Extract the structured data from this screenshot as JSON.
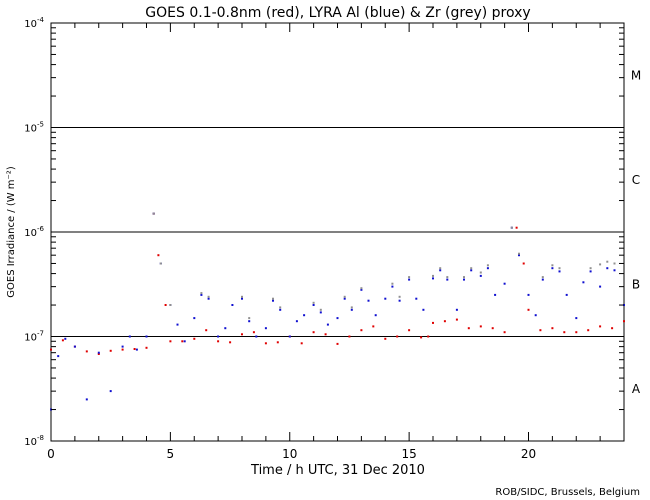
{
  "chart_data": {
    "type": "scatter",
    "title": "GOES 0.1-0.8nm (red), LYRA Al (blue) & Zr (grey) proxy",
    "xlabel": "Time / h UTC, 31 Dec 2010",
    "ylabel": "GOES Irradiance / (W m⁻²)",
    "credit": "ROB/SIDC, Brussels, Belgium",
    "x_scale": "linear",
    "y_scale": "log",
    "xlim": [
      0,
      24
    ],
    "ylim": [
      1e-08,
      0.0001
    ],
    "grid": false,
    "legend": "none",
    "x_ticks": [
      "0",
      "5",
      "10",
      "15",
      "20"
    ],
    "y_ticks": [
      {
        "value": 1e-08,
        "base": "10",
        "exp": "-8"
      },
      {
        "value": 1e-07,
        "base": "10",
        "exp": "-7"
      },
      {
        "value": 1e-06,
        "base": "10",
        "exp": "-6"
      },
      {
        "value": 1e-05,
        "base": "10",
        "exp": "-5"
      },
      {
        "value": 0.0001,
        "base": "10",
        "exp": "-4"
      }
    ],
    "threshold_lines": [
      1e-07,
      1e-06,
      1e-05
    ],
    "flare_classes": [
      {
        "label": "A",
        "value": 3.16e-08
      },
      {
        "label": "B",
        "value": 3.16e-07
      },
      {
        "label": "C",
        "value": 3.16e-06
      },
      {
        "label": "M",
        "value": 3.16e-05
      }
    ],
    "series": [
      {
        "color": "#e00000",
        "x": [
          0.0,
          0.5,
          1.0,
          1.5,
          2.0,
          2.5,
          3.0,
          3.5,
          4.0,
          4.3,
          4.5,
          4.8,
          5.0,
          5.5,
          6.0,
          6.5,
          7.0,
          7.5,
          8.0,
          8.5,
          9.0,
          9.5,
          10.0,
          10.5,
          11.0,
          11.5,
          12.0,
          12.5,
          13.0,
          13.5,
          14.0,
          14.5,
          15.0,
          15.5,
          15.8,
          16.0,
          16.5,
          17.0,
          17.5,
          18.0,
          18.5,
          19.0,
          19.5,
          19.8,
          20.0,
          20.5,
          21.0,
          21.5,
          22.0,
          22.5,
          23.0,
          23.5,
          24.0
        ],
        "y": [
          7.5e-08,
          9.2e-08,
          8e-08,
          7.2e-08,
          6.8e-08,
          7.3e-08,
          7.5e-08,
          7.6e-08,
          7.8e-08,
          1.5e-06,
          6e-07,
          2e-07,
          9e-08,
          9e-08,
          9.5e-08,
          1.15e-07,
          9e-08,
          8.8e-08,
          1.05e-07,
          1.1e-07,
          8.6e-08,
          8.8e-08,
          1e-07,
          8.6e-08,
          1.1e-07,
          1.05e-07,
          8.5e-08,
          1e-07,
          1.15e-07,
          1.25e-07,
          9.5e-08,
          1e-07,
          1.15e-07,
          9.8e-08,
          1e-07,
          1.35e-07,
          1.4e-07,
          1.45e-07,
          1.2e-07,
          1.25e-07,
          1.2e-07,
          1.1e-07,
          1.1e-06,
          5e-07,
          1.8e-07,
          1.15e-07,
          1.2e-07,
          1.1e-07,
          1.1e-07,
          1.15e-07,
          1.25e-07,
          1.2e-07,
          1.4e-07
        ]
      },
      {
        "color": "#1010d0",
        "x": [
          0.0,
          0.3,
          0.6,
          1.0,
          1.5,
          2.0,
          2.5,
          3.0,
          3.3,
          3.6,
          4.0,
          4.3,
          4.6,
          5.0,
          5.3,
          5.6,
          6.0,
          6.3,
          6.6,
          7.0,
          7.3,
          7.6,
          8.0,
          8.3,
          8.6,
          9.0,
          9.3,
          9.6,
          10.0,
          10.3,
          10.6,
          11.0,
          11.3,
          11.6,
          12.0,
          12.3,
          12.6,
          13.0,
          13.3,
          13.6,
          14.0,
          14.3,
          14.6,
          15.0,
          15.3,
          15.6,
          16.0,
          16.3,
          16.6,
          17.0,
          17.3,
          17.6,
          18.0,
          18.3,
          18.6,
          19.0,
          19.3,
          19.6,
          20.0,
          20.3,
          20.6,
          21.0,
          21.3,
          21.6,
          22.0,
          22.3,
          22.6,
          23.0,
          23.3,
          23.6,
          24.0
        ],
        "y": [
          2e-08,
          6.5e-08,
          9.5e-08,
          8e-08,
          2.5e-08,
          7e-08,
          3e-08,
          8e-08,
          1e-07,
          7.5e-08,
          1e-07,
          1.5e-06,
          5e-07,
          2e-07,
          1.3e-07,
          9e-08,
          1.5e-07,
          2.5e-07,
          2.3e-07,
          1e-07,
          1.2e-07,
          2e-07,
          2.3e-07,
          1.4e-07,
          1e-07,
          1.2e-07,
          2.2e-07,
          1.8e-07,
          1e-07,
          1.4e-07,
          1.6e-07,
          2e-07,
          1.7e-07,
          1.3e-07,
          1.5e-07,
          2.3e-07,
          1.8e-07,
          2.8e-07,
          2.2e-07,
          1.6e-07,
          2.3e-07,
          3e-07,
          2.2e-07,
          3.5e-07,
          2.3e-07,
          1.8e-07,
          3.6e-07,
          4.3e-07,
          3.5e-07,
          1.8e-07,
          3.5e-07,
          4.3e-07,
          3.8e-07,
          4.5e-07,
          2.5e-07,
          3.2e-07,
          1.1e-06,
          6e-07,
          2.5e-07,
          1.6e-07,
          3.5e-07,
          4.5e-07,
          4.2e-07,
          2.5e-07,
          1.5e-07,
          3.3e-07,
          4.2e-07,
          3e-07,
          4.5e-07,
          4.3e-07,
          2e-07
        ]
      },
      {
        "color": "#909090",
        "x": [
          4.3,
          4.6,
          5.0,
          6.3,
          6.6,
          8.0,
          8.3,
          9.3,
          9.6,
          11.0,
          11.3,
          12.3,
          12.6,
          13.0,
          14.3,
          14.6,
          15.0,
          16.0,
          16.3,
          16.6,
          17.3,
          17.6,
          18.0,
          18.3,
          19.3,
          19.6,
          20.6,
          21.0,
          21.3,
          22.6,
          23.0,
          23.3,
          23.6
        ],
        "y": [
          1.5e-06,
          5e-07,
          2e-07,
          2.6e-07,
          2.4e-07,
          2.4e-07,
          1.5e-07,
          2.3e-07,
          1.9e-07,
          2.1e-07,
          1.8e-07,
          2.4e-07,
          1.9e-07,
          2.9e-07,
          3.2e-07,
          2.4e-07,
          3.7e-07,
          3.8e-07,
          4.5e-07,
          3.7e-07,
          3.7e-07,
          4.5e-07,
          4.1e-07,
          4.8e-07,
          1.1e-06,
          6.2e-07,
          3.7e-07,
          4.8e-07,
          4.5e-07,
          4.5e-07,
          4.9e-07,
          5.2e-07,
          5e-07
        ]
      }
    ]
  }
}
